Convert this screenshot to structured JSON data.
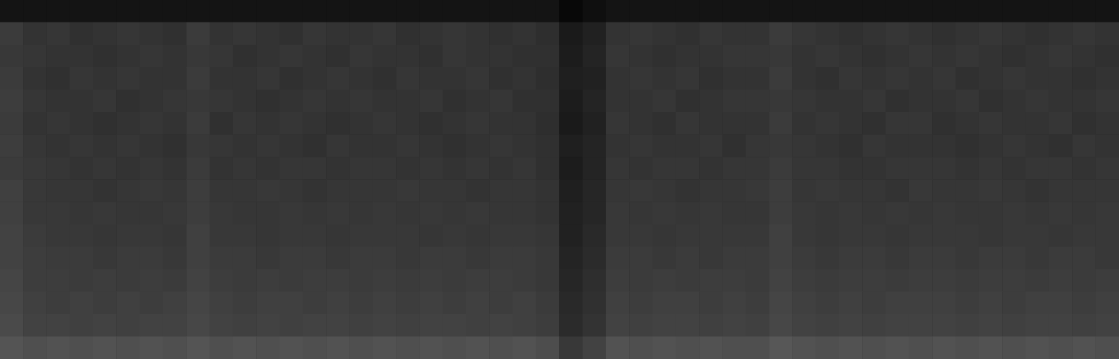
{
  "chart_data": {
    "type": "heatmap",
    "tick_labels": false,
    "grid": false,
    "color_range": [
      0,
      100
    ],
    "values": [
      [
        8,
        8,
        8,
        8,
        8,
        8,
        8,
        8,
        8,
        8,
        8,
        8,
        8,
        8,
        8,
        8,
        8,
        8,
        8,
        8,
        8,
        8,
        8,
        8,
        3,
        6,
        8,
        8,
        8,
        8,
        8,
        8,
        8,
        8,
        8,
        8,
        8,
        8,
        8,
        8,
        8,
        8,
        8,
        8,
        8,
        8,
        8,
        8
      ],
      [
        23,
        20,
        21,
        19,
        20,
        21,
        20,
        19,
        23,
        20,
        21,
        20,
        19,
        21,
        20,
        20,
        21,
        19,
        20,
        21,
        20,
        19,
        20,
        18,
        10,
        13,
        20,
        21,
        20,
        19,
        21,
        20,
        20,
        23,
        21,
        20,
        19,
        20,
        21,
        20,
        19,
        20,
        21,
        20,
        19,
        20,
        21,
        20
      ],
      [
        22,
        21,
        20,
        20,
        19,
        20,
        21,
        20,
        22,
        21,
        19,
        20,
        21,
        20,
        19,
        21,
        20,
        20,
        19,
        21,
        20,
        20,
        19,
        19,
        11,
        14,
        21,
        20,
        19,
        20,
        20,
        21,
        21,
        22,
        20,
        21,
        20,
        19,
        20,
        21,
        20,
        21,
        20,
        19,
        20,
        21,
        20,
        19
      ],
      [
        23,
        20,
        19,
        21,
        20,
        21,
        20,
        20,
        23,
        20,
        20,
        21,
        19,
        20,
        21,
        20,
        19,
        21,
        20,
        20,
        21,
        19,
        20,
        18,
        12,
        13,
        20,
        21,
        20,
        21,
        19,
        20,
        20,
        23,
        20,
        19,
        21,
        20,
        21,
        20,
        21,
        19,
        20,
        21,
        20,
        20,
        19,
        20
      ],
      [
        24,
        21,
        20,
        20,
        21,
        19,
        20,
        21,
        22,
        21,
        20,
        19,
        20,
        21,
        20,
        21,
        20,
        20,
        21,
        19,
        20,
        21,
        19,
        19,
        11,
        14,
        20,
        20,
        21,
        19,
        20,
        21,
        21,
        22,
        21,
        20,
        20,
        21,
        19,
        20,
        20,
        21,
        19,
        20,
        21,
        20,
        20,
        21
      ],
      [
        23,
        20,
        21,
        20,
        19,
        20,
        21,
        20,
        23,
        19,
        21,
        20,
        21,
        20,
        19,
        20,
        21,
        20,
        19,
        20,
        21,
        20,
        20,
        18,
        10,
        13,
        21,
        20,
        19,
        21,
        20,
        20,
        20,
        23,
        20,
        21,
        20,
        19,
        21,
        21,
        19,
        20,
        21,
        20,
        20,
        21,
        19,
        20
      ],
      [
        24,
        21,
        20,
        21,
        20,
        21,
        20,
        19,
        22,
        21,
        20,
        21,
        20,
        19,
        21,
        20,
        20,
        21,
        20,
        19,
        20,
        21,
        20,
        19,
        12,
        14,
        20,
        21,
        20,
        20,
        21,
        19,
        21,
        22,
        21,
        20,
        19,
        21,
        20,
        20,
        20,
        19,
        20,
        21,
        20,
        19,
        21,
        20
      ],
      [
        23,
        22,
        21,
        20,
        21,
        20,
        21,
        20,
        23,
        20,
        21,
        20,
        21,
        21,
        20,
        21,
        21,
        20,
        21,
        20,
        21,
        20,
        21,
        19,
        11,
        14,
        21,
        20,
        21,
        21,
        20,
        21,
        21,
        23,
        21,
        21,
        20,
        20,
        21,
        21,
        21,
        20,
        21,
        20,
        21,
        21,
        20,
        21
      ],
      [
        25,
        22,
        21,
        21,
        20,
        21,
        22,
        21,
        24,
        21,
        21,
        22,
        21,
        20,
        21,
        21,
        21,
        22,
        21,
        21,
        20,
        21,
        21,
        20,
        12,
        15,
        21,
        22,
        21,
        20,
        21,
        21,
        22,
        24,
        21,
        22,
        21,
        21,
        20,
        22,
        21,
        21,
        22,
        21,
        20,
        21,
        21,
        21
      ],
      [
        25,
        22,
        22,
        21,
        22,
        21,
        21,
        22,
        24,
        22,
        21,
        21,
        22,
        21,
        22,
        21,
        22,
        21,
        22,
        21,
        22,
        21,
        21,
        20,
        13,
        15,
        22,
        21,
        22,
        21,
        22,
        21,
        21,
        24,
        22,
        21,
        22,
        21,
        22,
        21,
        22,
        21,
        21,
        22,
        21,
        22,
        21,
        22
      ],
      [
        26,
        23,
        22,
        22,
        21,
        22,
        22,
        21,
        25,
        22,
        22,
        21,
        22,
        22,
        21,
        22,
        22,
        22,
        21,
        22,
        21,
        22,
        22,
        21,
        13,
        16,
        22,
        22,
        21,
        22,
        22,
        22,
        22,
        25,
        22,
        21,
        22,
        22,
        21,
        22,
        22,
        22,
        21,
        22,
        22,
        21,
        22,
        22
      ],
      [
        26,
        24,
        23,
        23,
        22,
        23,
        23,
        22,
        25,
        23,
        23,
        22,
        23,
        23,
        22,
        23,
        23,
        22,
        23,
        23,
        22,
        23,
        23,
        22,
        14,
        17,
        23,
        23,
        22,
        23,
        22,
        23,
        23,
        25,
        23,
        22,
        23,
        23,
        22,
        23,
        23,
        22,
        23,
        23,
        22,
        23,
        23,
        22
      ],
      [
        27,
        24,
        24,
        23,
        24,
        23,
        24,
        23,
        26,
        24,
        23,
        24,
        23,
        24,
        24,
        23,
        24,
        23,
        24,
        23,
        24,
        24,
        23,
        22,
        15,
        18,
        24,
        23,
        24,
        23,
        24,
        24,
        23,
        26,
        24,
        23,
        24,
        24,
        23,
        24,
        24,
        23,
        24,
        24,
        23,
        24,
        23,
        24
      ],
      [
        28,
        25,
        24,
        25,
        24,
        25,
        24,
        25,
        27,
        25,
        24,
        25,
        25,
        24,
        25,
        24,
        25,
        24,
        25,
        24,
        25,
        24,
        25,
        23,
        16,
        19,
        25,
        24,
        25,
        25,
        24,
        25,
        24,
        27,
        25,
        24,
        25,
        24,
        25,
        25,
        25,
        24,
        25,
        24,
        25,
        25,
        24,
        25
      ],
      [
        29,
        26,
        26,
        25,
        26,
        25,
        26,
        26,
        28,
        26,
        25,
        26,
        25,
        26,
        26,
        25,
        26,
        25,
        26,
        26,
        25,
        26,
        25,
        24,
        17,
        20,
        26,
        25,
        26,
        26,
        25,
        26,
        25,
        28,
        26,
        25,
        26,
        25,
        26,
        26,
        26,
        25,
        26,
        25,
        26,
        26,
        25,
        26
      ],
      [
        33,
        31,
        32,
        31,
        32,
        31,
        32,
        31,
        33,
        31,
        32,
        31,
        32,
        31,
        32,
        31,
        32,
        31,
        32,
        31,
        32,
        31,
        32,
        30,
        22,
        26,
        32,
        31,
        32,
        31,
        32,
        31,
        31,
        34,
        32,
        31,
        32,
        31,
        32,
        31,
        32,
        31,
        32,
        31,
        32,
        31,
        32,
        31
      ]
    ]
  }
}
